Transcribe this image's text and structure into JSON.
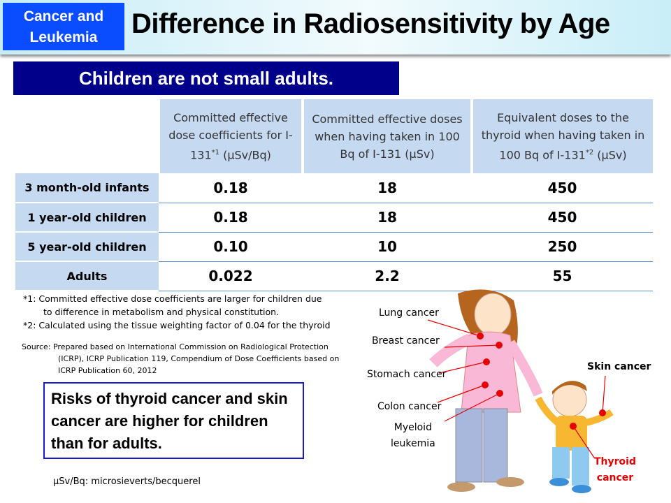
{
  "header": {
    "badge": "Cancer and Leukemia",
    "badge_line1": "Cancer and",
    "badge_line2": "Leukemia",
    "title": "Difference in Radiosensitivity by Age"
  },
  "subtitle": "Children are not small adults.",
  "table": {
    "columns": [
      {
        "text": "Committed effective dose coefficients for I-131",
        "sup": "*1",
        "unit": " (μSv/Bq)"
      },
      {
        "text": "Committed effective doses when having taken in 100 Bq of I-131 (μSv)"
      },
      {
        "text": "Equivalent doses to the thyroid when having taken in 100 Bq of I-131",
        "sup": "*2",
        "unit": " (μSv)"
      }
    ],
    "rows": [
      {
        "label": "3 month-old infants",
        "values": [
          "0.18",
          "18",
          "450"
        ]
      },
      {
        "label": "1 year-old children",
        "values": [
          "0.18",
          "18",
          "450"
        ]
      },
      {
        "label": "5 year-old children",
        "values": [
          "0.10",
          "10",
          "250"
        ]
      },
      {
        "label": "Adults",
        "values": [
          "0.022",
          "2.2",
          "55"
        ]
      }
    ]
  },
  "notes": {
    "n1a": "*1: Committed effective dose coefficients are larger for children due",
    "n1b": "to difference in metabolism and physical constitution.",
    "n2": "*2: Calculated using the tissue weighting factor of 0.04 for the thyroid",
    "source1": "Source: Prepared based on International Commission on Radiological Protection",
    "source2": "(ICRP), ICRP Publication 119, Compendium of Dose Coefficients based on",
    "source3": "ICRP Publication 60, 2012"
  },
  "risk": "Risks of thyroid cancer and skin cancer are higher for children than for adults.",
  "unit_note": "μSv/Bq: microsieverts/becquerel",
  "illustration": {
    "lung": "Lung cancer",
    "breast": "Breast cancer",
    "stomach": "Stomach cancer",
    "colon": "Colon cancer",
    "myeloid1": "Myeloid",
    "myeloid2": "leukemia",
    "skin": "Skin cancer",
    "thyroid1": "Thyroid",
    "thyroid2": "cancer"
  },
  "colors": {
    "badge": "#0a4cff",
    "subtitle": "#00008b",
    "table_header": "#c5d9f1",
    "marker": "#e60000",
    "risk_border": "#1a1ad0"
  }
}
